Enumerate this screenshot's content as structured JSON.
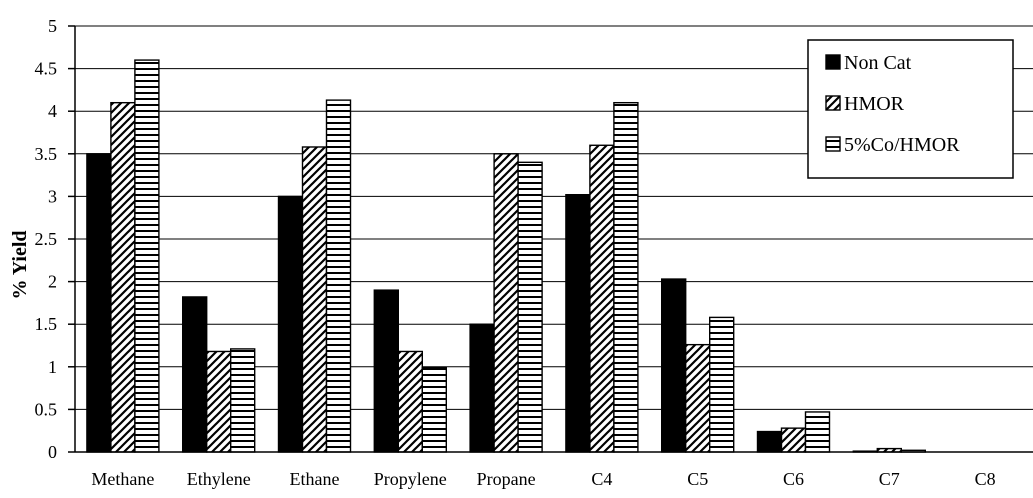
{
  "chart_data": {
    "type": "bar",
    "title": "",
    "xlabel": "",
    "ylabel": "% Yield",
    "ylim": [
      0,
      5
    ],
    "yticks": [
      0,
      0.5,
      1,
      1.5,
      2,
      2.5,
      3,
      3.5,
      4,
      4.5,
      5
    ],
    "ytick_labels": [
      "0",
      "0.5",
      "1",
      "1.5",
      "2",
      "2.5",
      "3",
      "3.5",
      "4",
      "4.5",
      "5"
    ],
    "grid": "horizontal",
    "legend_position": "top-right",
    "categories": [
      "Methane",
      "Ethylene",
      "Ethane",
      "Propylene",
      "Propane",
      "C4",
      "C5",
      "C6",
      "C7",
      "C8"
    ],
    "series": [
      {
        "name": "Non Cat",
        "pattern": "solid",
        "color": "#000000",
        "values": [
          3.5,
          1.82,
          3.0,
          1.9,
          1.5,
          3.02,
          2.03,
          0.24,
          0.01,
          0.0
        ]
      },
      {
        "name": "HMOR",
        "pattern": "diagonal-stripes",
        "color": "#000000",
        "values": [
          4.1,
          1.18,
          3.58,
          1.18,
          3.5,
          3.6,
          1.26,
          0.28,
          0.04,
          0.0
        ]
      },
      {
        "name": "5%Co/HMOR",
        "pattern": "horizontal-stripes",
        "color": "#000000",
        "values": [
          4.6,
          1.21,
          4.13,
          0.99,
          3.4,
          4.1,
          1.58,
          0.47,
          0.02,
          0.0
        ]
      }
    ]
  }
}
